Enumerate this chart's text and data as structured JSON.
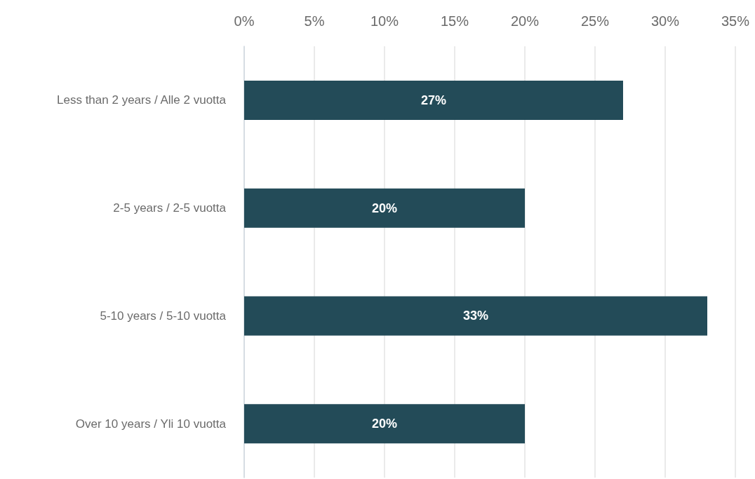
{
  "chart_data": {
    "type": "bar",
    "orientation": "horizontal",
    "categories": [
      "Less than 2 years / Alle 2 vuotta",
      "2-5 years / 2-5 vuotta",
      "5-10 years / 5-10 vuotta",
      "Over 10 years / Yli 10 vuotta"
    ],
    "values": [
      27,
      20,
      33,
      20
    ],
    "color": "#234b58",
    "xlim": [
      0,
      35
    ],
    "xticks": [
      {
        "value": 0,
        "label": "0%"
      },
      {
        "value": 5,
        "label": "5%"
      },
      {
        "value": 10,
        "label": "10%"
      },
      {
        "value": 15,
        "label": "15%"
      },
      {
        "value": 20,
        "label": "20%"
      },
      {
        "value": 25,
        "label": "25%"
      },
      {
        "value": 30,
        "label": "30%"
      },
      {
        "value": 35,
        "label": "35%"
      }
    ],
    "value_labels": [
      "27%",
      "20%",
      "33%",
      "20%"
    ],
    "grid": "x"
  }
}
